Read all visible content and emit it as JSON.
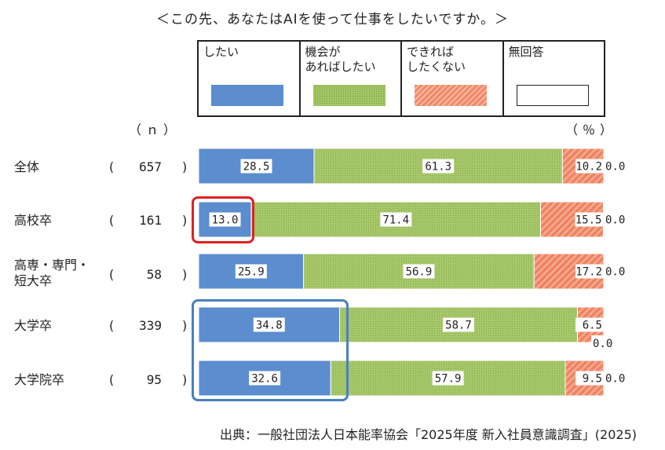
{
  "title": "＜この先、あなたはAIを使って仕事をしたいですか。＞",
  "n_header": "（ｎ）",
  "pct_header": "（％）",
  "legend": [
    {
      "label_lines": [
        "したい"
      ],
      "color": "#5b8dcf",
      "pattern": "solid"
    },
    {
      "label_lines": [
        "機会が",
        "あればしたい"
      ],
      "color": "#a8c96b",
      "pattern": "dots"
    },
    {
      "label_lines": [
        "できれば",
        "したくない"
      ],
      "color": "#f08a6a",
      "pattern": "stripes"
    },
    {
      "label_lines": [
        "無回答"
      ],
      "color": "#ffffff",
      "pattern": "none"
    }
  ],
  "rows": [
    {
      "label_lines": [
        "全体"
      ],
      "n": "657"
    },
    {
      "label_lines": [
        "高校卒"
      ],
      "n": "161"
    },
    {
      "label_lines": [
        "高専・専門・",
        "短大卒"
      ],
      "n": "58"
    },
    {
      "label_lines": [
        "大学卒"
      ],
      "n": "339"
    },
    {
      "label_lines": [
        "大学院卒"
      ],
      "n": "95"
    }
  ],
  "source": "出典：一般社団法人日本能率協会「2025年度 新入社員意識調査」(2025)",
  "chart_data": {
    "type": "bar",
    "orientation": "horizontal-stacked-100",
    "title": "＜この先、あなたはAIを使って仕事をしたいですか。＞",
    "categories": [
      "全体",
      "高校卒",
      "高専・専門・短大卒",
      "大学卒",
      "大学院卒"
    ],
    "series": [
      {
        "name": "したい",
        "values": [
          28.5,
          13.0,
          25.9,
          34.8,
          32.6
        ],
        "color": "#5b8dcf"
      },
      {
        "name": "機会があればしたい",
        "values": [
          61.3,
          71.4,
          56.9,
          58.7,
          57.9
        ],
        "color": "#a8c96b"
      },
      {
        "name": "できればしたくない",
        "values": [
          10.2,
          15.5,
          17.2,
          6.5,
          9.5
        ],
        "color": "#f08a6a"
      },
      {
        "name": "無回答",
        "values": [
          0.0,
          0.0,
          0.0,
          0.0,
          0.0
        ],
        "color": "#ffffff"
      }
    ],
    "xlim": [
      0,
      100
    ],
    "legend_position": "top",
    "unit": "%"
  }
}
